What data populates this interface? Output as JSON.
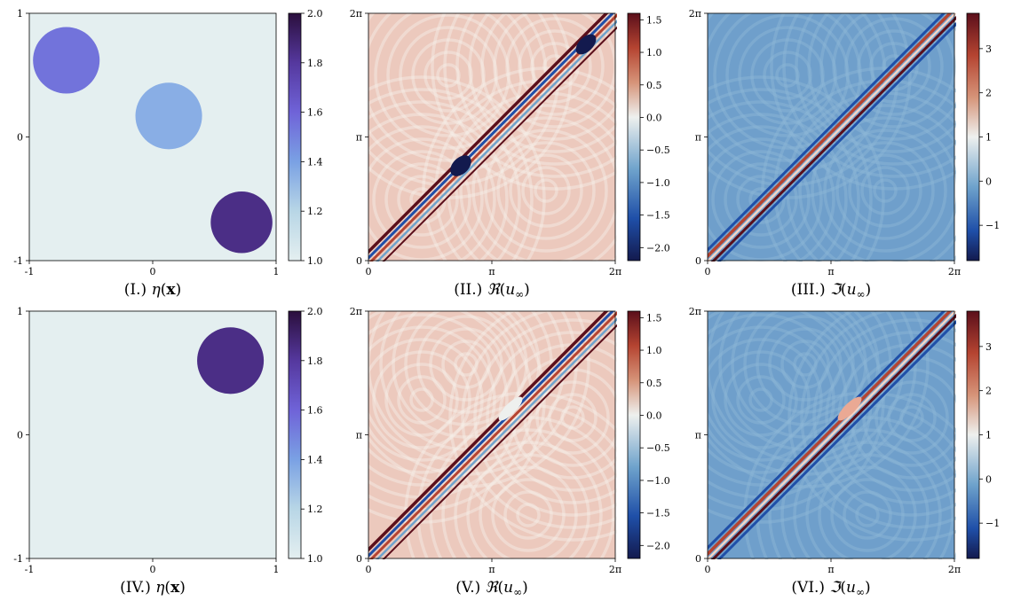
{
  "colors": {
    "eta_background": "#e4eff0",
    "eta_cmap": [
      "#e4eff0",
      "#b8d6e6",
      "#7aa1e4",
      "#6f63d8",
      "#55389e",
      "#2b0f3d"
    ],
    "wave_background": "#ecc9bd",
    "re_cmap": [
      "#131a4e",
      "#1f4fa8",
      "#6fa3cc",
      "#eef0ee",
      "#d69479",
      "#b54431",
      "#5b0f1b"
    ],
    "im_cmap": [
      "#131a4e",
      "#1f4fa8",
      "#6fa3cc",
      "#eef0ee",
      "#d69479",
      "#b54431",
      "#5b0f1b"
    ],
    "im_background": "#6f9fcb"
  },
  "chart_data": [
    {
      "type": "heatmap",
      "panel": "I",
      "caption": "(I.) η(x)",
      "caption_parts": {
        "prefix": "(I.) ",
        "symbol": "η",
        "arg_open": "(",
        "arg": "x",
        "arg_close": ")"
      },
      "x_ticks": [
        "-1",
        "0",
        "1"
      ],
      "y_ticks": [
        "1",
        "0",
        "-1"
      ],
      "xlim": [
        -1,
        1
      ],
      "ylim": [
        -1,
        1
      ],
      "colorbar": {
        "ticks": [
          "2.0",
          "1.8",
          "1.6",
          "1.4",
          "1.2",
          "1.0"
        ],
        "range": [
          1.0,
          2.0
        ]
      },
      "background_value": 1.0,
      "circles": [
        {
          "cx": -0.7,
          "cy": 0.62,
          "r": 0.27,
          "value": 1.55
        },
        {
          "cx": 0.13,
          "cy": 0.17,
          "r": 0.27,
          "value": 1.35
        },
        {
          "cx": 0.72,
          "cy": -0.69,
          "r": 0.25,
          "value": 1.85
        }
      ]
    },
    {
      "type": "heatmap",
      "panel": "II",
      "caption": "(II.) ℜ(u∞)",
      "caption_parts": {
        "prefix": "(II.) ",
        "symbol": "ℜ",
        "arg_open": "(",
        "arg": "u",
        "sub": "∞",
        "arg_close": ")"
      },
      "x_ticks": [
        "0",
        "π",
        "2π"
      ],
      "y_ticks": [
        "2π",
        "π",
        "0"
      ],
      "colorbar": {
        "ticks": [
          "1.5",
          "1.0",
          "0.5",
          "0.0",
          "−0.5",
          "−1.0",
          "−1.5",
          "−2.0"
        ],
        "range": [
          -2.2,
          1.6
        ]
      }
    },
    {
      "type": "heatmap",
      "panel": "III",
      "caption": "(III.) ℑ(u∞)",
      "caption_parts": {
        "prefix": "(III.) ",
        "symbol": "ℑ",
        "arg_open": "(",
        "arg": "u",
        "sub": "∞",
        "arg_close": ")"
      },
      "x_ticks": [
        "0",
        "π",
        "2π"
      ],
      "y_ticks": [
        "2π",
        "π",
        "0"
      ],
      "colorbar": {
        "ticks": [
          "3",
          "2",
          "1",
          "0",
          "−1"
        ],
        "range": [
          -1.8,
          3.8
        ]
      }
    },
    {
      "type": "heatmap",
      "panel": "IV",
      "caption": "(IV.) η(x)",
      "caption_parts": {
        "prefix": "(IV.) ",
        "symbol": "η",
        "arg_open": "(",
        "arg": "x",
        "arg_close": ")"
      },
      "x_ticks": [
        "-1",
        "0",
        "1"
      ],
      "y_ticks": [
        "1",
        "0",
        "-1"
      ],
      "xlim": [
        -1,
        1
      ],
      "ylim": [
        -1,
        1
      ],
      "colorbar": {
        "ticks": [
          "2.0",
          "1.8",
          "1.6",
          "1.4",
          "1.2",
          "1.0"
        ],
        "range": [
          1.0,
          2.0
        ]
      },
      "background_value": 1.0,
      "circles": [
        {
          "cx": 0.63,
          "cy": 0.6,
          "r": 0.27,
          "value": 1.85
        }
      ]
    },
    {
      "type": "heatmap",
      "panel": "V",
      "caption": "(V.) ℜ(u∞)",
      "caption_parts": {
        "prefix": "(V.) ",
        "symbol": "ℜ",
        "arg_open": "(",
        "arg": "u",
        "sub": "∞",
        "arg_close": ")"
      },
      "x_ticks": [
        "0",
        "π",
        "2π"
      ],
      "y_ticks": [
        "2π",
        "π",
        "0"
      ],
      "colorbar": {
        "ticks": [
          "1.5",
          "1.0",
          "0.5",
          "0.0",
          "−0.5",
          "−1.0",
          "−1.5",
          "−2.0"
        ],
        "range": [
          -2.2,
          1.6
        ]
      }
    },
    {
      "type": "heatmap",
      "panel": "VI",
      "caption": "(VI.) ℑ(u∞)",
      "caption_parts": {
        "prefix": "(VI.) ",
        "symbol": "ℑ",
        "arg_open": "(",
        "arg": "u",
        "sub": "∞",
        "arg_close": ")"
      },
      "x_ticks": [
        "0",
        "π",
        "2π"
      ],
      "y_ticks": [
        "2π",
        "π",
        "0"
      ],
      "colorbar": {
        "ticks": [
          "3",
          "2",
          "1",
          "0",
          "−1"
        ],
        "range": [
          -1.8,
          3.8
        ]
      }
    }
  ]
}
